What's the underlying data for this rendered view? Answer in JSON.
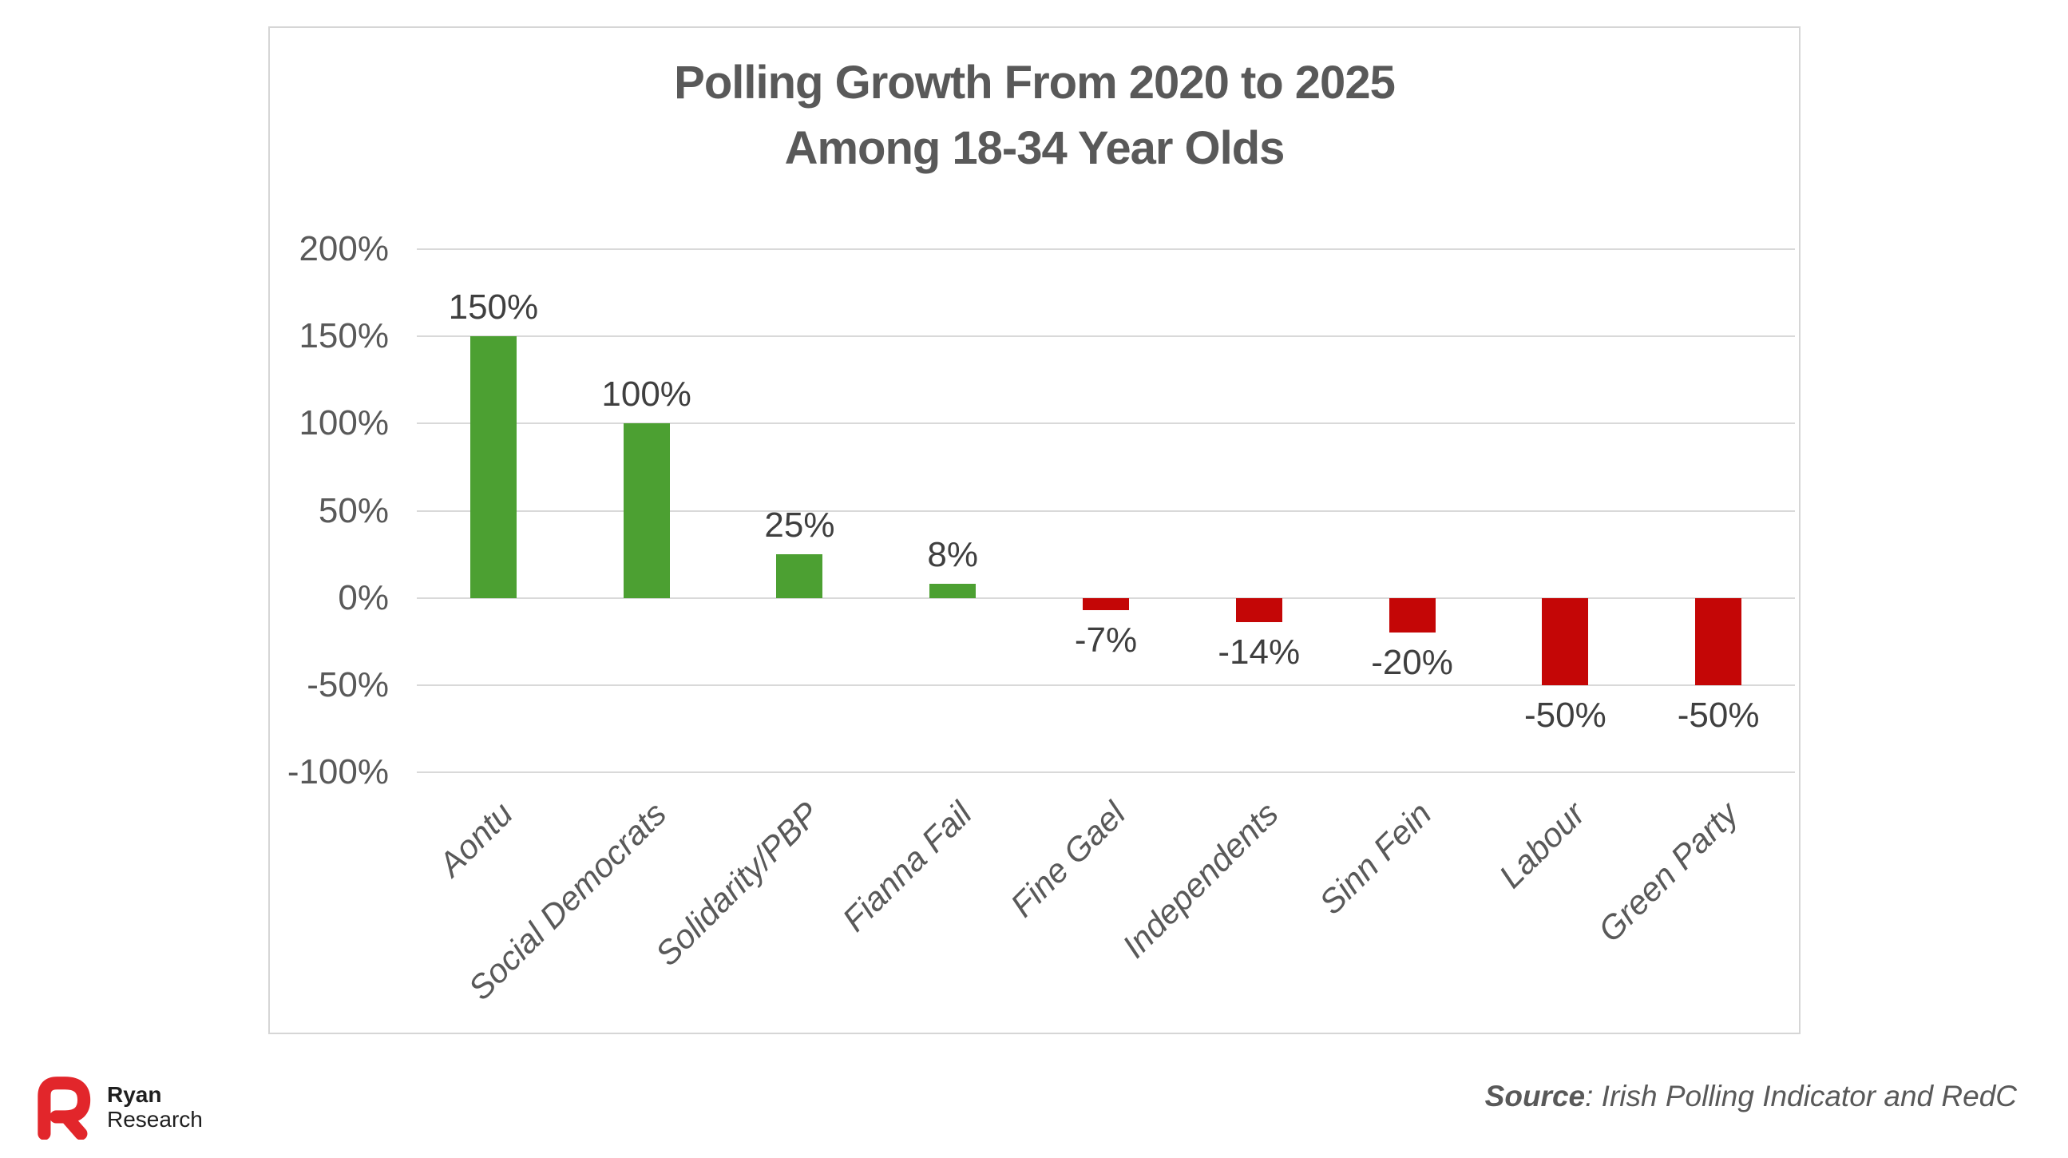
{
  "chart_data": {
    "type": "bar",
    "title": "Polling Growth From 2020 to 2025 Among 18-34 Year Olds",
    "title_lines": [
      "Polling Growth From 2020 to 2025",
      "Among 18-34 Year Olds"
    ],
    "categories": [
      "Aontu",
      "Social Democrats",
      "Solidarity/PBP",
      "Fianna Fail",
      "Fine Gael",
      "Independents",
      "Sinn Fein",
      "Labour",
      "Green Party"
    ],
    "values": [
      150,
      100,
      25,
      8,
      -7,
      -14,
      -20,
      -50,
      -50
    ],
    "value_labels": [
      "150%",
      "100%",
      "25%",
      "8%",
      "-7%",
      "-14%",
      "-20%",
      "-50%",
      "-50%"
    ],
    "xlabel": "",
    "ylabel": "",
    "ylim": [
      -100,
      200
    ],
    "ytick_values": [
      200,
      150,
      100,
      50,
      0,
      -50,
      -100
    ],
    "ytick_labels": [
      "200%",
      "150%",
      "100%",
      "50%",
      "0%",
      "-50%",
      "-100%"
    ],
    "grid": true,
    "legend": false,
    "bar_colors": {
      "positive": "#4CA032",
      "negative": "#C40606"
    },
    "gridline_color": "#D9D9D9"
  },
  "footer": {
    "logo_line1": "Ryan",
    "logo_line2": "Research",
    "logo_color": "#E2262B",
    "source_label": "Source",
    "source_rest": ": Irish Polling Indicator and RedC"
  }
}
